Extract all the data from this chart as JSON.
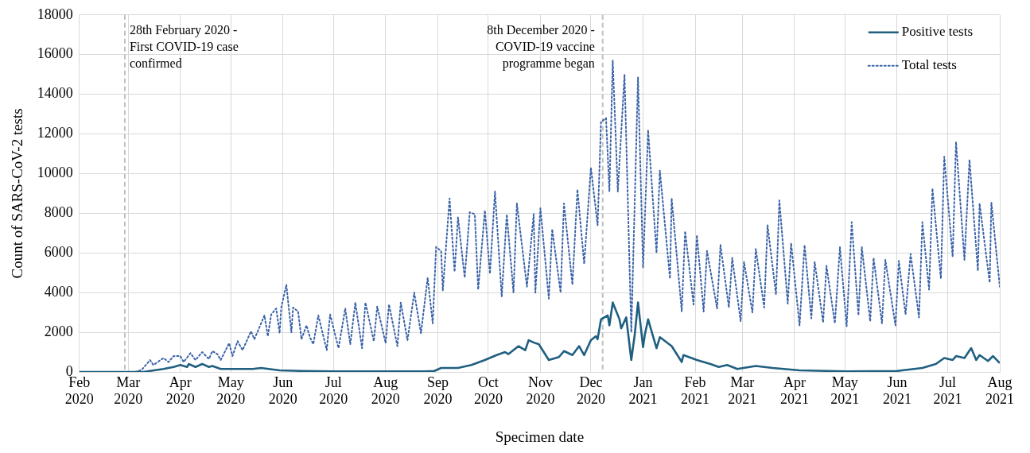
{
  "chart_data": {
    "type": "line",
    "xlabel": "Specimen date",
    "ylabel": "Count of SARS-CoV-2 tests",
    "xlim": [
      "2020-02-01",
      "2021-08-01"
    ],
    "xticks": [
      {
        "value": "2020-02-01",
        "label": "Feb 2020"
      },
      {
        "value": "2020-03-01",
        "label": "Mar 2020"
      },
      {
        "value": "2020-04-01",
        "label": "Apr 2020"
      },
      {
        "value": "2020-05-01",
        "label": "May 2020"
      },
      {
        "value": "2020-06-01",
        "label": "Jun 2020"
      },
      {
        "value": "2020-07-01",
        "label": "Jul 2020"
      },
      {
        "value": "2020-08-01",
        "label": "Aug 2020"
      },
      {
        "value": "2020-09-01",
        "label": "Sep 2020"
      },
      {
        "value": "2020-10-01",
        "label": "Oct 2020"
      },
      {
        "value": "2020-11-01",
        "label": "Nov 2020"
      },
      {
        "value": "2020-12-01",
        "label": "Dec 2020"
      },
      {
        "value": "2021-01-01",
        "label": "Jan 2021"
      },
      {
        "value": "2021-02-01",
        "label": "Feb 2021"
      },
      {
        "value": "2021-03-01",
        "label": "Mar 2021"
      },
      {
        "value": "2021-04-01",
        "label": "Apr 2021"
      },
      {
        "value": "2021-05-01",
        "label": "May 2021"
      },
      {
        "value": "2021-06-01",
        "label": "Jun 2021"
      },
      {
        "value": "2021-07-01",
        "label": "Jul 2021"
      },
      {
        "value": "2021-08-01",
        "label": "Aug 2021"
      }
    ],
    "ylim": [
      0,
      18000
    ],
    "yticks": [
      0,
      2000,
      4000,
      6000,
      8000,
      10000,
      12000,
      14000,
      16000,
      18000
    ],
    "grid": true,
    "legend": "top right",
    "marker": "none",
    "ref_lines": [
      {
        "axis": "x",
        "value": "2020-02-28",
        "label": "28th February 2020 - First COVID-19 case confirmed",
        "color": "#bfbfbf",
        "line_style": "dashed"
      },
      {
        "axis": "x",
        "value": "2020-12-08",
        "label": "8th December 2020 - COVID-19 vaccine programme began",
        "color": "#bfbfbf",
        "line_style": "dashed"
      }
    ],
    "series": [
      {
        "name": "Positive tests",
        "color": "#1f5f80",
        "line_style": "solid",
        "x": [
          "2020-02-01",
          "2020-03-10",
          "2020-03-22",
          "2020-03-28",
          "2020-04-01",
          "2020-04-05",
          "2020-04-06",
          "2020-04-10",
          "2020-04-14",
          "2020-04-18",
          "2020-04-20",
          "2020-04-25",
          "2020-05-05",
          "2020-05-14",
          "2020-05-19",
          "2020-05-30",
          "2020-06-12",
          "2020-07-02",
          "2020-08-24",
          "2020-08-30",
          "2020-09-03",
          "2020-09-13",
          "2020-09-21",
          "2020-09-29",
          "2020-10-06",
          "2020-10-11",
          "2020-10-13",
          "2020-10-19",
          "2020-10-23",
          "2020-10-25",
          "2020-10-29",
          "2020-10-31",
          "2020-11-06",
          "2020-11-12",
          "2020-11-15",
          "2020-11-20",
          "2020-11-24",
          "2020-11-27",
          "2020-12-01",
          "2020-12-04",
          "2020-12-05",
          "2020-12-07",
          "2020-12-11",
          "2020-12-12",
          "2020-12-14",
          "2020-12-18",
          "2020-12-19",
          "2020-12-22",
          "2020-12-25",
          "2020-12-27",
          "2020-12-29",
          "2021-01-01",
          "2021-01-02",
          "2021-01-04",
          "2021-01-09",
          "2021-01-11",
          "2021-01-18",
          "2021-01-24",
          "2021-01-25",
          "2021-02-02",
          "2021-02-10",
          "2021-02-15",
          "2021-02-20",
          "2021-02-26",
          "2021-03-09",
          "2021-03-19",
          "2021-04-04",
          "2021-05-02",
          "2021-06-01",
          "2021-06-16",
          "2021-06-24",
          "2021-06-29",
          "2021-07-04",
          "2021-07-06",
          "2021-07-11",
          "2021-07-15",
          "2021-07-18",
          "2021-07-20",
          "2021-07-25",
          "2021-07-28",
          "2021-08-01"
        ],
        "values": [
          0,
          0,
          150,
          250,
          350,
          250,
          400,
          250,
          400,
          250,
          300,
          150,
          150,
          150,
          200,
          80,
          50,
          30,
          30,
          50,
          200,
          200,
          350,
          600,
          850,
          1000,
          900,
          1300,
          1100,
          1600,
          1450,
          1400,
          600,
          750,
          1050,
          850,
          1300,
          850,
          1600,
          1800,
          1650,
          2650,
          2850,
          2350,
          3500,
          2650,
          2200,
          2750,
          600,
          1850,
          3500,
          1250,
          1850,
          2650,
          1200,
          1750,
          1300,
          500,
          850,
          600,
          400,
          250,
          350,
          150,
          300,
          200,
          80,
          30,
          50,
          200,
          400,
          700,
          600,
          800,
          700,
          1200,
          600,
          850,
          550,
          800,
          450
        ]
      },
      {
        "name": "Total tests",
        "color": "#3b63a8",
        "line_style": "dotted",
        "x": [
          "2020-02-01",
          "2020-03-05",
          "2020-03-09",
          "2020-03-14",
          "2020-03-16",
          "2020-03-22",
          "2020-03-25",
          "2020-03-28",
          "2020-04-01",
          "2020-04-03",
          "2020-04-07",
          "2020-04-10",
          "2020-04-14",
          "2020-04-18",
          "2020-04-20",
          "2020-04-23",
          "2020-04-25",
          "2020-04-30",
          "2020-05-02",
          "2020-05-05",
          "2020-05-08",
          "2020-05-13",
          "2020-05-15",
          "2020-05-21",
          "2020-05-23",
          "2020-05-25",
          "2020-05-28",
          "2020-05-30",
          "2020-05-31",
          "2020-06-03",
          "2020-06-06",
          "2020-06-07",
          "2020-06-10",
          "2020-06-12",
          "2020-06-15",
          "2020-06-17",
          "2020-06-19",
          "2020-06-22",
          "2020-06-27",
          "2020-06-29",
          "2020-07-04",
          "2020-07-08",
          "2020-07-11",
          "2020-07-14",
          "2020-07-18",
          "2020-07-20",
          "2020-07-25",
          "2020-07-27",
          "2020-08-01",
          "2020-08-03",
          "2020-08-08",
          "2020-08-10",
          "2020-08-14",
          "2020-08-18",
          "2020-08-22",
          "2020-08-26",
          "2020-08-29",
          "2020-08-31",
          "2020-09-03",
          "2020-09-04",
          "2020-09-08",
          "2020-09-11",
          "2020-09-13",
          "2020-09-17",
          "2020-09-20",
          "2020-09-23",
          "2020-09-25",
          "2020-09-29",
          "2020-10-02",
          "2020-10-05",
          "2020-10-09",
          "2020-10-12",
          "2020-10-16",
          "2020-10-18",
          "2020-10-24",
          "2020-10-28",
          "2020-10-29",
          "2020-11-01",
          "2020-11-06",
          "2020-11-08",
          "2020-11-13",
          "2020-11-15",
          "2020-11-20",
          "2020-11-23",
          "2020-11-27",
          "2020-12-01",
          "2020-12-05",
          "2020-12-07",
          "2020-12-10",
          "2020-12-12",
          "2020-12-14",
          "2020-12-17",
          "2020-12-21",
          "2020-12-25",
          "2020-12-29",
          "2021-01-01",
          "2021-01-04",
          "2021-01-09",
          "2021-01-11",
          "2021-01-17",
          "2021-01-18",
          "2021-01-24",
          "2021-01-26",
          "2021-01-31",
          "2021-02-02",
          "2021-02-06",
          "2021-02-08",
          "2021-02-14",
          "2021-02-16",
          "2021-02-21",
          "2021-02-23",
          "2021-02-28",
          "2021-03-02",
          "2021-03-07",
          "2021-03-09",
          "2021-03-14",
          "2021-03-16",
          "2021-03-21",
          "2021-03-23",
          "2021-03-28",
          "2021-03-30",
          "2021-04-04",
          "2021-04-07",
          "2021-04-11",
          "2021-04-13",
          "2021-04-18",
          "2021-04-20",
          "2021-04-25",
          "2021-04-28",
          "2021-05-02",
          "2021-05-05",
          "2021-05-09",
          "2021-05-11",
          "2021-05-16",
          "2021-05-18",
          "2021-05-23",
          "2021-05-25",
          "2021-05-31",
          "2021-06-02",
          "2021-06-06",
          "2021-06-09",
          "2021-06-14",
          "2021-06-16",
          "2021-06-20",
          "2021-06-22",
          "2021-06-27",
          "2021-06-29",
          "2021-07-04",
          "2021-07-06",
          "2021-07-11",
          "2021-07-14",
          "2021-07-19",
          "2021-07-20",
          "2021-07-26",
          "2021-07-27",
          "2021-08-01"
        ],
        "values": [
          0,
          0,
          100,
          600,
          350,
          700,
          500,
          800,
          800,
          500,
          950,
          600,
          1000,
          650,
          1050,
          900,
          600,
          1450,
          800,
          1550,
          1100,
          2050,
          1650,
          2850,
          1800,
          2900,
          3200,
          1950,
          3250,
          4400,
          2000,
          3250,
          3050,
          1650,
          2350,
          1750,
          1400,
          2850,
          1100,
          2900,
          1200,
          3200,
          1400,
          3500,
          1200,
          3500,
          1550,
          3300,
          1450,
          3400,
          1300,
          3500,
          1600,
          4000,
          1950,
          4750,
          2450,
          6300,
          6100,
          4100,
          8750,
          5050,
          7800,
          4750,
          8050,
          7950,
          4150,
          8150,
          4950,
          9100,
          3800,
          7950,
          4000,
          8500,
          4300,
          7950,
          4000,
          8250,
          3700,
          7200,
          4000,
          8500,
          4400,
          9200,
          5450,
          10300,
          7400,
          12600,
          12800,
          9100,
          15700,
          9100,
          15000,
          2000,
          14850,
          5250,
          12200,
          6000,
          10150,
          4700,
          8750,
          3050,
          7100,
          3400,
          6900,
          3050,
          6100,
          3200,
          6400,
          3250,
          5750,
          2550,
          5550,
          3000,
          6200,
          3250,
          7400,
          3900,
          8650,
          3450,
          6500,
          2350,
          6400,
          2700,
          5550,
          2500,
          5350,
          2450,
          6300,
          2300,
          7550,
          2850,
          6300,
          2550,
          5750,
          2450,
          5650,
          2350,
          5600,
          2900,
          5950,
          2750,
          7550,
          4150,
          9250,
          4700,
          10850,
          5800,
          11600,
          5650,
          10700,
          5100,
          8500,
          4500,
          8550,
          4300
        ]
      }
    ]
  }
}
